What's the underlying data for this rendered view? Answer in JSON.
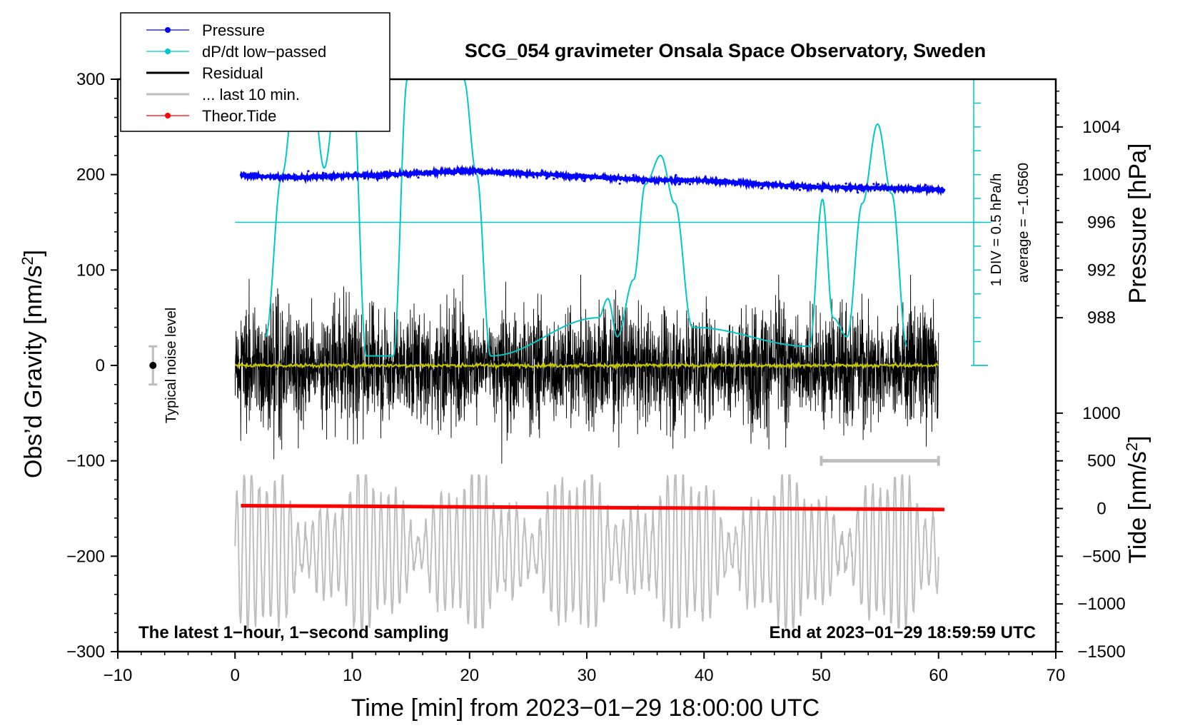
{
  "chart_data": {
    "type": "line",
    "title": "SCG_054 gravimeter Onsala Space Observatory, Sweden",
    "xlabel": "Time [min] from 2023−01−29 18:00:00 UTC",
    "ylabel_main": "Obs’d Gravity [nm/s",
    "ylabel_main_sup": "2",
    "ylabel_main_end": "]",
    "ylabel_pressure": "Pressure [hPa]",
    "ylabel_tide": "Tide [nm/s",
    "ylabel_tide_sup": "2",
    "ylabel_tide_end": "]",
    "xlim": [
      -10,
      70
    ],
    "ylim": [
      -300,
      300
    ],
    "x_ticks": [
      "−10",
      "0",
      "10",
      "20",
      "30",
      "40",
      "50",
      "60",
      "70"
    ],
    "x_tick_values": [
      -10,
      0,
      10,
      20,
      30,
      40,
      50,
      60,
      70
    ],
    "y_ticks": [
      "300",
      "200",
      "100",
      "0",
      "−100",
      "−200",
      "−300"
    ],
    "y_tick_values": [
      300,
      200,
      100,
      0,
      -100,
      -200,
      -300
    ],
    "pressure_axis": {
      "ticks": [
        "1004",
        "1000",
        "996",
        "992",
        "988"
      ],
      "values": [
        1004,
        1000,
        996,
        992,
        988
      ],
      "gravity_equiv": [
        250,
        200,
        150,
        100,
        50
      ]
    },
    "tide_axis": {
      "ticks": [
        "1000",
        "500",
        "0",
        "−500",
        "−1000",
        "−1500"
      ],
      "values": [
        1000,
        500,
        0,
        -500,
        -1000,
        -1500
      ],
      "gravity_equiv": [
        -50,
        -100,
        -150,
        -200,
        -250,
        -300
      ]
    },
    "dpdt_scale": {
      "label": "1 DIV = 0.5 hPa/h",
      "average_label": "average = −1.0560"
    },
    "noise_label": "Typical noise level",
    "noise_bar": {
      "x": -7,
      "center": 0,
      "half_range": 20
    },
    "last10_bar": {
      "x_start": 50,
      "x_end": 60,
      "y": -100
    },
    "bottom_left_note": "The latest 1−hour, 1−second sampling",
    "bottom_right_note": "End at 2023−01−29 18:59:59 UTC",
    "legend": [
      {
        "label": "Pressure",
        "color": "#0000ff",
        "marker": true
      },
      {
        "label": "dP/dt low−passed",
        "color": "#00c8c8",
        "marker": true
      },
      {
        "label": "Residual",
        "color": "#000000",
        "marker": false
      },
      {
        "label": "... last 10 min.",
        "color": "#bebebe",
        "marker": false
      },
      {
        "label": "Theor.Tide",
        "color": "#ff0000",
        "marker": true
      }
    ],
    "series": [
      {
        "name": "Pressure",
        "color": "#0000ff",
        "unit": "gravity-axis equivalent",
        "x": [
          0.5,
          5,
          10,
          13,
          20,
          25,
          30,
          36,
          40,
          45,
          50,
          55,
          60.5
        ],
        "values": [
          199,
          197,
          199,
          200,
          204,
          201,
          198,
          194,
          194,
          190,
          187,
          186,
          184
        ]
      },
      {
        "name": "dP/dt low-passed",
        "color": "#00c8c8",
        "unit": "gravity-axis equivalent",
        "baseline": 150,
        "x": [
          2.6,
          4,
          5.2,
          6.5,
          7.6,
          8.8,
          10,
          11.2,
          13.5,
          14.7,
          16,
          19.5,
          20.6,
          21.8,
          31,
          31.8,
          32.6,
          34,
          35,
          36.3,
          37.5,
          39,
          49,
          50.1,
          51,
          52.2,
          53.5,
          54.8,
          56,
          57.3
        ],
        "values": [
          30,
          200,
          300,
          300,
          207,
          300,
          300,
          10,
          10,
          300,
          300,
          300,
          200,
          10,
          50,
          70,
          30,
          90,
          190,
          220,
          170,
          40,
          20,
          174,
          50,
          30,
          170,
          253,
          180,
          20
        ]
      },
      {
        "name": "Residual (low-passed, yellow)",
        "color": "#c8c800",
        "x": [
          0,
          10,
          20,
          30,
          40,
          50,
          60
        ],
        "values": [
          0,
          0,
          0,
          0,
          0,
          0,
          0
        ]
      },
      {
        "name": "Residual",
        "color": "#000000",
        "x": [
          0,
          60
        ],
        "envelope": [
          -95,
          95
        ],
        "extremes": {
          "max": 95,
          "min": -110
        }
      },
      {
        "name": "... last 10 min.",
        "color": "#bebebe",
        "x": [
          0,
          60
        ],
        "center": -195,
        "envelope": [
          -275,
          -115
        ]
      },
      {
        "name": "Theor.Tide",
        "color": "#ff0000",
        "x": [
          0.5,
          60.5
        ],
        "values": [
          -147,
          -151
        ]
      }
    ]
  }
}
